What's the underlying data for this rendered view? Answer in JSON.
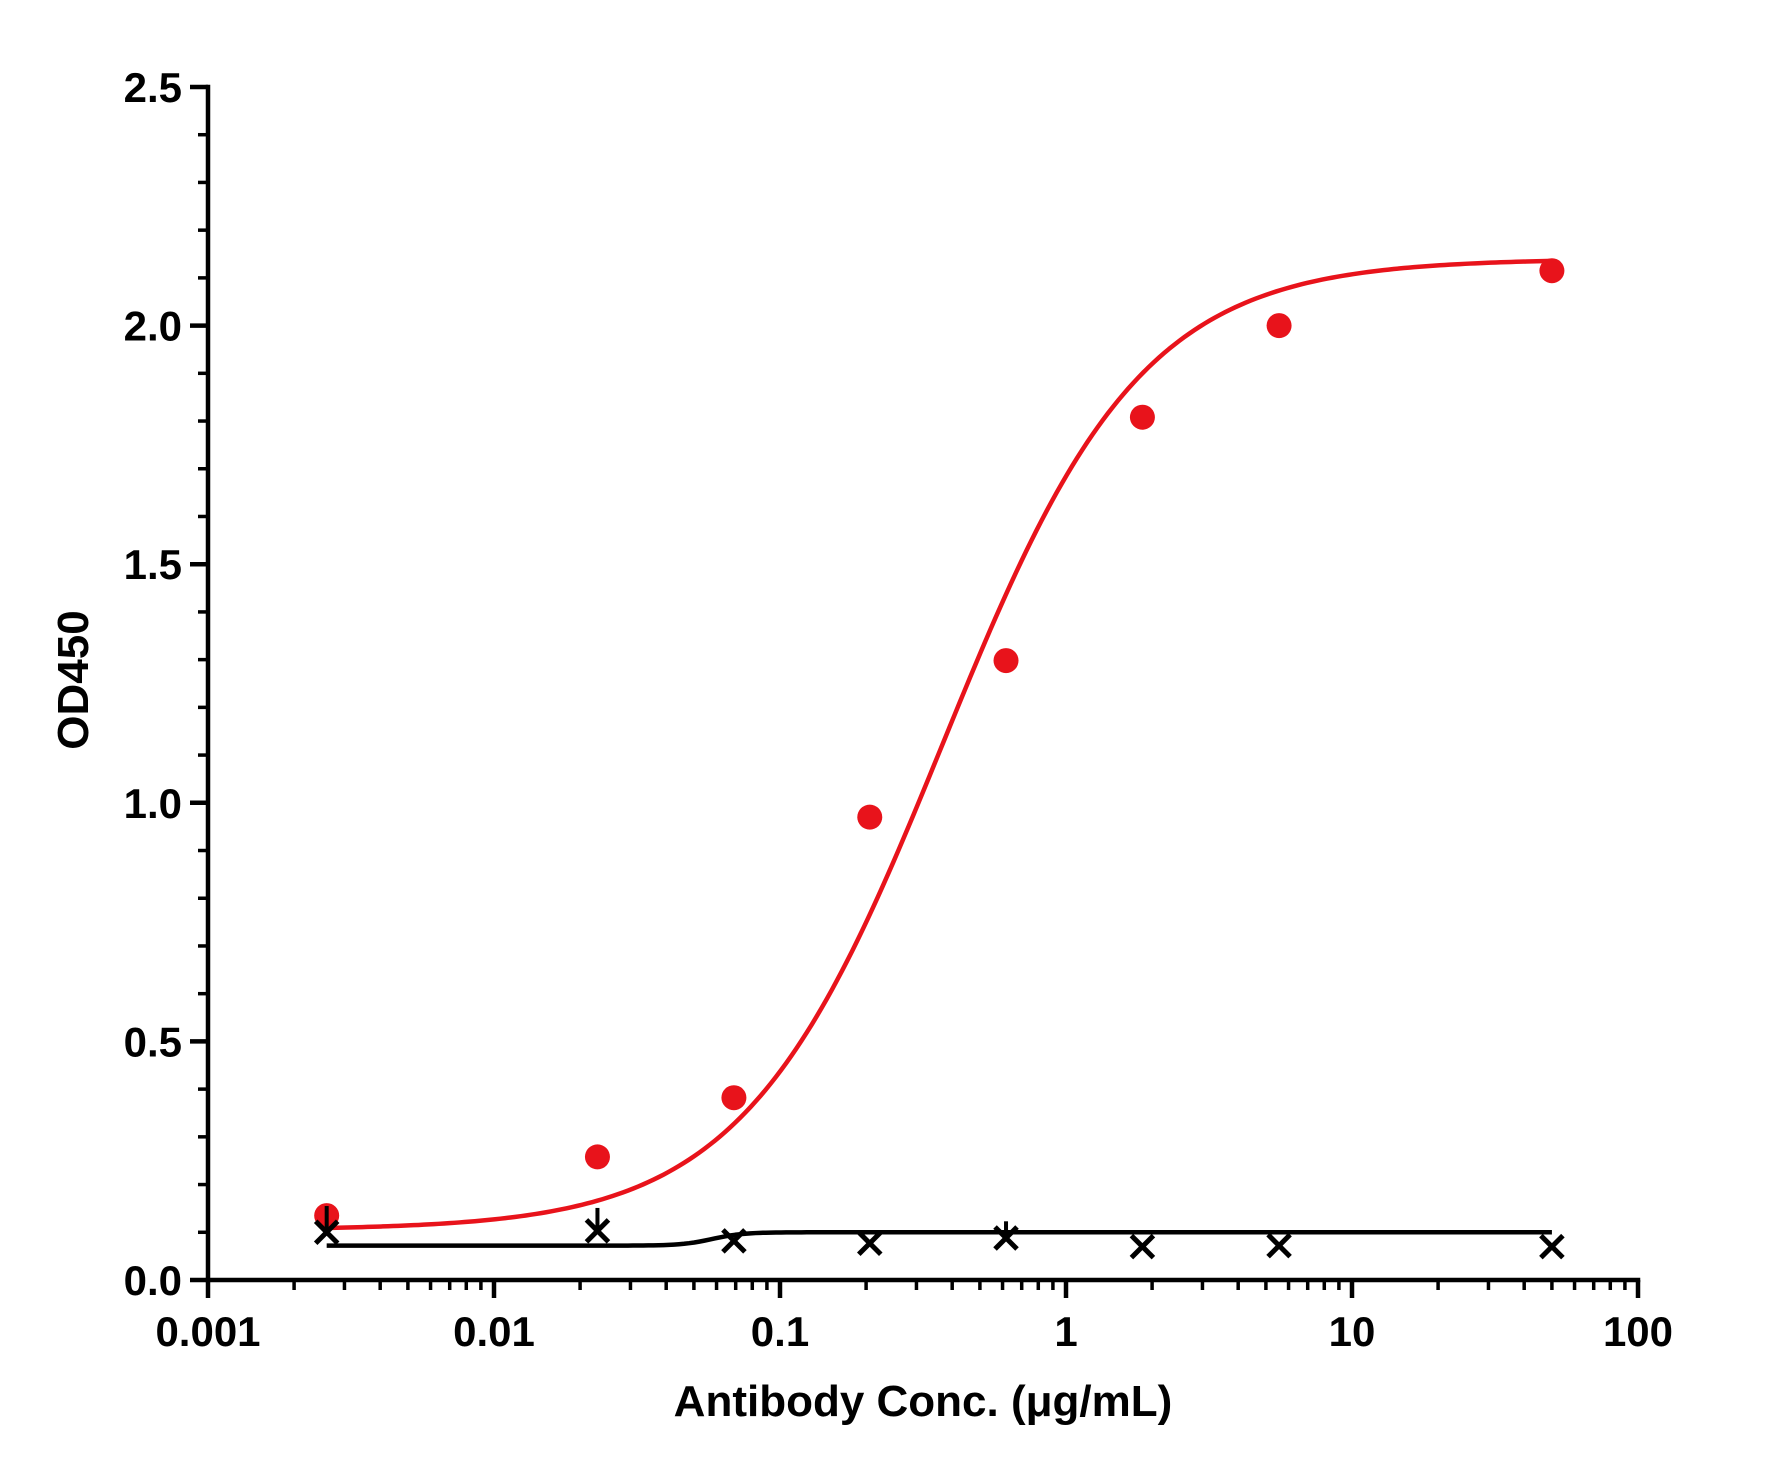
{
  "chart_data": {
    "type": "scatter",
    "title": "",
    "xlabel": "Antibody Conc. (μg/mL)",
    "ylabel": "OD450",
    "xscale": "log",
    "xlim": [
      0.001,
      100
    ],
    "ylim": [
      0,
      2.5
    ],
    "x_ticks": [
      {
        "value": 0.001,
        "label": "0.001"
      },
      {
        "value": 0.01,
        "label": "0.01"
      },
      {
        "value": 0.1,
        "label": "0.1"
      },
      {
        "value": 1,
        "label": "1"
      },
      {
        "value": 10,
        "label": "10"
      },
      {
        "value": 100,
        "label": "100"
      }
    ],
    "y_ticks": [
      {
        "value": 0,
        "label": "0.0"
      },
      {
        "value": 0.5,
        "label": "0.5"
      },
      {
        "value": 1.0,
        "label": "1.0"
      },
      {
        "value": 1.5,
        "label": "1.5"
      },
      {
        "value": 2.0,
        "label": "2.0"
      },
      {
        "value": 2.5,
        "label": "2.5"
      }
    ],
    "grid": false,
    "legend": "none",
    "series": [
      {
        "color": "#e8131b",
        "marker": "circle",
        "x": [
          0.0026,
          0.023,
          0.069,
          0.206,
          0.617,
          1.85,
          5.56,
          50
        ],
        "y": [
          0.135,
          0.258,
          0.382,
          0.97,
          1.298,
          1.808,
          2.0,
          2.115
        ],
        "fit": {
          "model": "4PL",
          "bottom": 0.105,
          "top": 2.14,
          "ec50": 0.37,
          "hill": 1.25
        }
      },
      {
        "color": "#000000",
        "marker": "x",
        "x": [
          0.0026,
          0.023,
          0.069,
          0.206,
          0.617,
          1.85,
          5.56,
          50
        ],
        "y": [
          0.1,
          0.103,
          0.082,
          0.077,
          0.088,
          0.07,
          0.072,
          0.07
        ],
        "y_err_upper": [
          0.055,
          0.048,
          0,
          0,
          0.035,
          0,
          0,
          0
        ],
        "fit": {
          "model": "4PL",
          "bottom": 0.072,
          "top": 0.1,
          "ec50": 0.058,
          "hill": 8
        }
      }
    ]
  }
}
